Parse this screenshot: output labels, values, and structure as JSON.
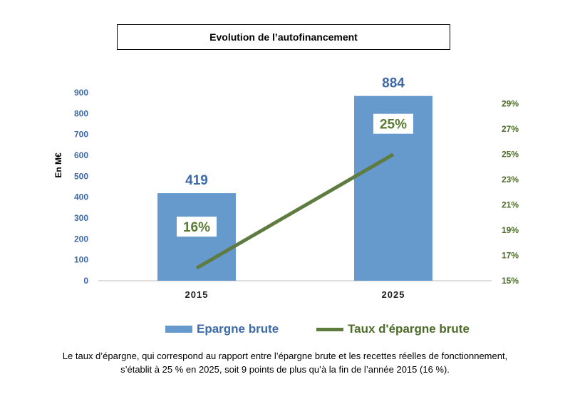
{
  "title": "Evolution de l’autofinancement",
  "chart_data": {
    "type": "bar",
    "categories": [
      "2015",
      "2025"
    ],
    "series": [
      {
        "name": "Epargne brute",
        "values": [
          419,
          884
        ],
        "axis": "left",
        "kind": "bar",
        "color": "#6699cc"
      },
      {
        "name": "Taux d'épargne brute",
        "values": [
          16,
          25
        ],
        "axis": "right",
        "kind": "line",
        "color": "#5e7c3f"
      }
    ],
    "value_labels": [
      "419",
      "884"
    ],
    "rate_labels": [
      "16%",
      "25%"
    ],
    "ylabel": "En M€",
    "ylim": [
      0,
      900
    ],
    "yticks": [
      "0",
      "100",
      "200",
      "300",
      "400",
      "500",
      "600",
      "700",
      "800",
      "900"
    ],
    "y2lim": [
      15,
      30
    ],
    "y2ticks": [
      "15%",
      "17%",
      "19%",
      "21%",
      "23%",
      "25%",
      "27%",
      "29%"
    ],
    "grid": false,
    "legend": "bottom"
  },
  "caption": {
    "line1": "Le taux d’épargne, qui correspond au rapport entre l’épargne brute et les recettes réelles de fonctionnement,",
    "line2": "s’établit à 25 % en 2025, soit 9 points de plus qu’à la fin de l’année 2015 (16 %)."
  }
}
